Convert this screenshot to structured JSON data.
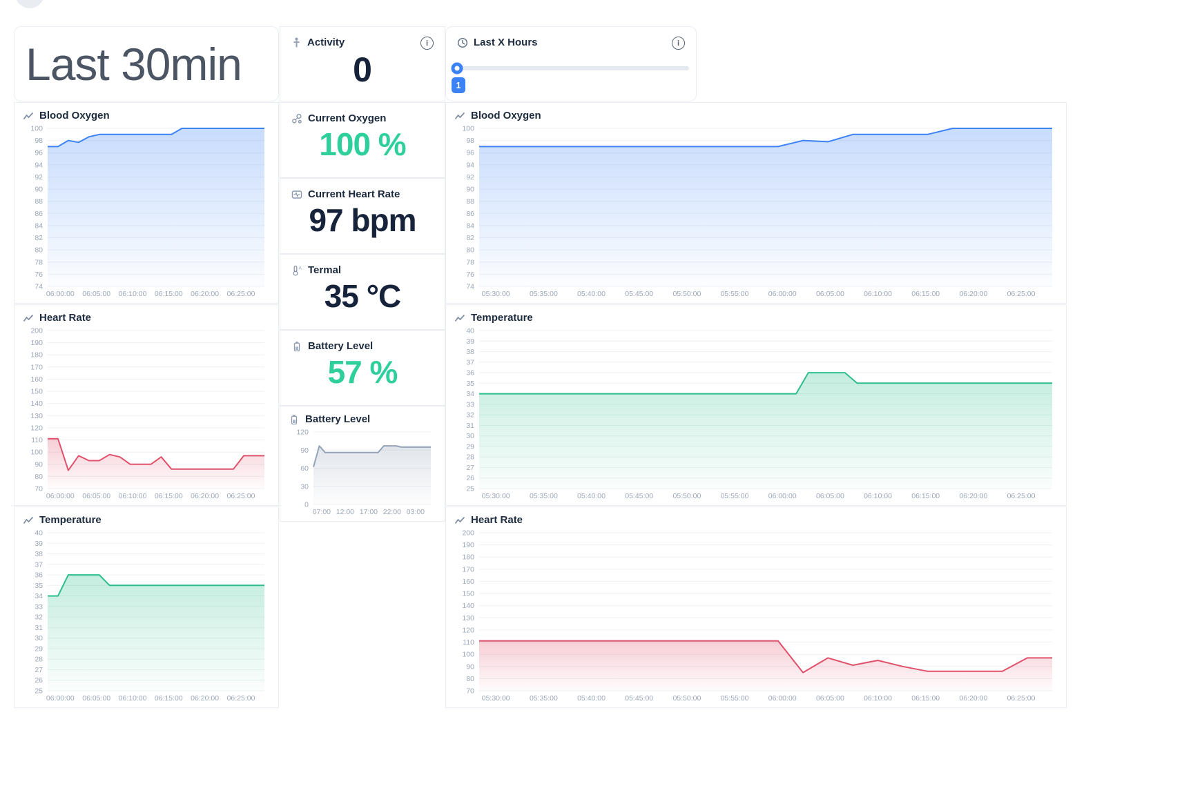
{
  "page": {
    "title": "Last 30min"
  },
  "activity": {
    "label": "Activity",
    "value": "0",
    "icon": "person-icon"
  },
  "last_x_hours": {
    "label": "Last X Hours",
    "value": "1",
    "icon": "clock-icon"
  },
  "colors": {
    "accent_blue": "#3b82f6",
    "positive_green": "#2fcf9c",
    "dark_value": "#16233a"
  },
  "stats": [
    {
      "label": "Current Oxygen",
      "value": "100 %",
      "color": "#2fcf9c",
      "icon": "oxygen-molecule-icon"
    },
    {
      "label": "Current Heart Rate",
      "value": "97 bpm",
      "color": "#16233a",
      "icon": "heart-monitor-icon"
    },
    {
      "label": "Termal",
      "value": "35 °C",
      "color": "#16233a",
      "icon": "thermometer-icon"
    },
    {
      "label": "Battery Level",
      "value": "57 %",
      "color": "#2fcf9c",
      "icon": "battery-icon"
    }
  ],
  "chart_data": [
    {
      "id": "left_blood_oxygen",
      "type": "area",
      "title": "Blood Oxygen",
      "color": "#3b82f6",
      "y_min": 74,
      "y_max": 100,
      "y_step": 2,
      "grid": true,
      "legend": "none",
      "x_labels": [
        "06:00:00",
        "06:05:00",
        "06:10:00",
        "06:15:00",
        "06:20:00",
        "06:25:00"
      ],
      "values": [
        97,
        97,
        98,
        97.7,
        98.6,
        99,
        99,
        99,
        99,
        99,
        99,
        99,
        99,
        100,
        100,
        100,
        100,
        100,
        100,
        100,
        100,
        100
      ]
    },
    {
      "id": "left_heart_rate",
      "type": "area",
      "title": "Heart Rate",
      "color": "#e0506b",
      "y_min": 70,
      "y_max": 200,
      "y_step": 10,
      "grid": true,
      "legend": "none",
      "x_labels": [
        "06:00:00",
        "06:05:00",
        "06:10:00",
        "06:15:00",
        "06:20:00",
        "06:25:00"
      ],
      "values": [
        111,
        111,
        85,
        97,
        93,
        93,
        98,
        96,
        90,
        90,
        90,
        96,
        86,
        86,
        86,
        86,
        86,
        86,
        86,
        97,
        97,
        97
      ]
    },
    {
      "id": "left_temperature",
      "type": "area",
      "title": "Temperature",
      "color": "#2bbd8d",
      "y_min": 25,
      "y_max": 40,
      "y_step": 1,
      "grid": true,
      "legend": "none",
      "x_labels": [
        "06:00:00",
        "06:05:00",
        "06:10:00",
        "06:15:00",
        "06:20:00",
        "06:25:00"
      ],
      "values": [
        34,
        34,
        36,
        36,
        36,
        36,
        35,
        35,
        35,
        35,
        35,
        35,
        35,
        35,
        35,
        35,
        35,
        35,
        35,
        35,
        35,
        35
      ]
    },
    {
      "id": "battery_level_history",
      "type": "area",
      "title": "Battery Level",
      "color": "#93a2b7",
      "y_min": 0,
      "y_max": 120,
      "y_step": 30,
      "grid": true,
      "legend": "none",
      "x_labels": [
        "07:00",
        "12:00",
        "17:00",
        "22:00",
        "03:00"
      ],
      "values": [
        62,
        97,
        86,
        86,
        86,
        86,
        86,
        86,
        86,
        86,
        86,
        86,
        97,
        97,
        97,
        95,
        95,
        95,
        95,
        95,
        95
      ]
    },
    {
      "id": "right_blood_oxygen",
      "type": "area",
      "title": "Blood Oxygen",
      "color": "#3b82f6",
      "y_min": 74,
      "y_max": 100,
      "y_step": 2,
      "grid": true,
      "legend": "none",
      "x_labels": [
        "05:30:00",
        "05:35:00",
        "05:40:00",
        "05:45:00",
        "05:50:00",
        "05:55:00",
        "06:00:00",
        "06:05:00",
        "06:10:00",
        "06:15:00",
        "06:20:00",
        "06:25:00"
      ],
      "values": [
        97,
        97,
        97,
        97,
        97,
        97,
        97,
        97,
        97,
        97,
        97,
        97,
        97,
        98,
        97.8,
        99,
        99,
        99,
        99,
        100,
        100,
        100,
        100,
        100
      ]
    },
    {
      "id": "right_temperature",
      "type": "area",
      "title": "Temperature",
      "color": "#2bbd8d",
      "y_min": 25,
      "y_max": 40,
      "y_step": 1,
      "grid": true,
      "legend": "none",
      "x_labels": [
        "05:30:00",
        "05:35:00",
        "05:40:00",
        "05:45:00",
        "05:50:00",
        "05:55:00",
        "06:00:00",
        "06:05:00",
        "06:10:00",
        "06:15:00",
        "06:20:00",
        "06:25:00"
      ],
      "values": [
        34,
        34,
        34,
        34,
        34,
        34,
        34,
        34,
        34,
        34,
        34,
        34,
        34,
        34,
        34,
        34,
        34,
        34,
        34,
        34,
        34,
        34,
        34,
        34,
        34,
        34,
        34,
        36,
        36,
        36,
        36,
        35,
        35,
        35,
        35,
        35,
        35,
        35,
        35,
        35,
        35,
        35,
        35,
        35,
        35,
        35,
        35,
        35
      ]
    },
    {
      "id": "right_heart_rate",
      "type": "area",
      "title": "Heart Rate",
      "color": "#e0506b",
      "y_min": 70,
      "y_max": 200,
      "y_step": 10,
      "grid": true,
      "legend": "none",
      "x_labels": [
        "05:30:00",
        "05:35:00",
        "05:40:00",
        "05:45:00",
        "05:50:00",
        "05:55:00",
        "06:00:00",
        "06:05:00",
        "06:10:00",
        "06:15:00",
        "06:20:00",
        "06:25:00"
      ],
      "values": [
        111,
        111,
        111,
        111,
        111,
        111,
        111,
        111,
        111,
        111,
        111,
        111,
        111,
        85,
        97,
        91,
        95,
        90,
        86,
        86,
        86,
        86,
        97,
        97
      ]
    }
  ]
}
